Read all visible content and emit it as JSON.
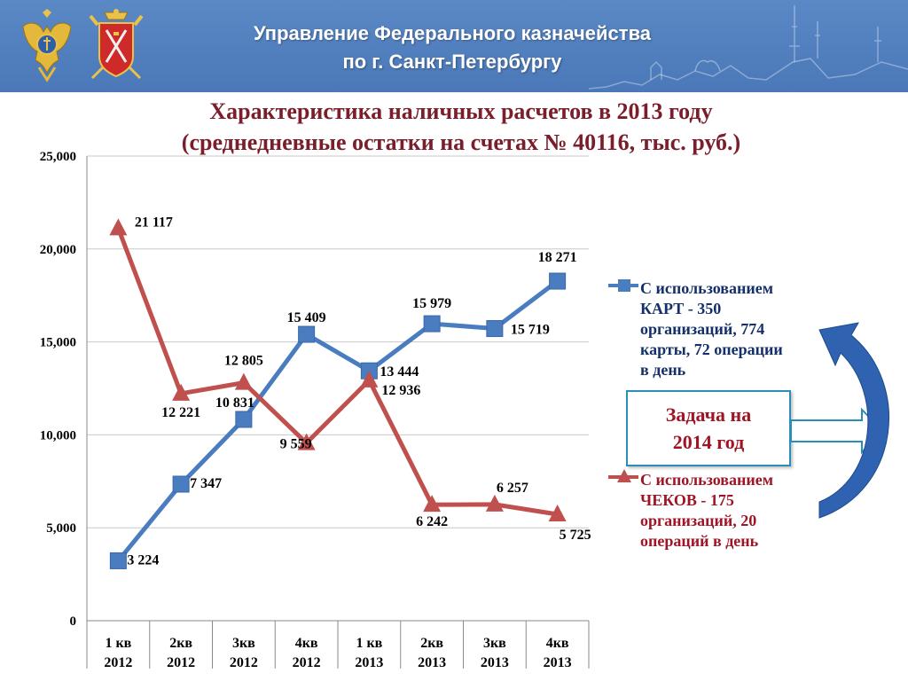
{
  "header": {
    "title_line1": "Управление Федерального казначейства",
    "title_line2": "по г. Санкт-Петербургу"
  },
  "chart_data": {
    "type": "line",
    "title_line1": "Характеристика наличных расчетов в 2013 году",
    "title_line2": "(среднедневные остатки на счетах № 40116, тыс. руб.)",
    "categories": [
      [
        "1 кв",
        "2012"
      ],
      [
        "2кв",
        "2012"
      ],
      [
        "3кв",
        "2012"
      ],
      [
        "4кв",
        "2012"
      ],
      [
        "1 кв",
        "2013"
      ],
      [
        "2кв",
        "2013"
      ],
      [
        "3кв",
        "2013"
      ],
      [
        "4кв",
        "2013"
      ]
    ],
    "ylim": [
      0,
      25000
    ],
    "yticks": [
      0,
      5000,
      10000,
      15000,
      20000,
      25000
    ],
    "ytick_labels": [
      "0",
      "5,000",
      "10,000",
      "15,000",
      "20,000",
      "25,000"
    ],
    "grid": true,
    "legend_position": "right",
    "series": [
      {
        "name": "С использованием КАРТ - 350 организаций, 774 карты, 72 операции в день",
        "name_lines": [
          "С использованием",
          "КАРТ - 350",
          "организаций, 774",
          "карты, 72 операции",
          "в день"
        ],
        "color": "#4a7cc0",
        "marker": "square",
        "values": [
          3224,
          7347,
          10831,
          15409,
          13444,
          15979,
          15719,
          18271
        ],
        "labels": [
          "3 224",
          "7 347",
          "10 831",
          "15 409",
          "13 444",
          "15 979",
          "15 719",
          "18 271"
        ]
      },
      {
        "name": "С использованием ЧЕКОВ - 175 организаций, 20 операций в день",
        "name_lines": [
          "С использованием",
          "ЧЕКОВ - 175",
          "организаций, 20",
          "операций в день"
        ],
        "color": "#c0504d",
        "marker": "triangle",
        "values": [
          21117,
          12221,
          12805,
          9559,
          12936,
          6242,
          6257,
          5725
        ],
        "labels": [
          "21 117",
          "12 221",
          "12 805",
          "9 559",
          "12 936",
          "6 242",
          "6 257",
          "5 725"
        ]
      }
    ]
  },
  "task": {
    "line1": "Задача на",
    "line2": "2014 год"
  },
  "colors": {
    "header_bg": "#4a78b8",
    "title": "#7a1e2c",
    "arrow": "#2f62b0",
    "box_border": "#2a8fb8"
  },
  "icons": [
    "double-headed-eagle-emblem-icon",
    "st-petersburg-coat-of-arms-icon",
    "city-skyline-icon",
    "curved-arrow-icon",
    "right-arrow-icon"
  ]
}
